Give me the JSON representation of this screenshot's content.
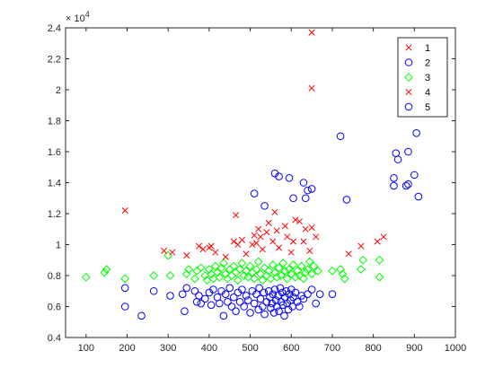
{
  "chart_data": {
    "type": "scatter",
    "title": "",
    "xlabel": "",
    "ylabel": "",
    "xlim": [
      50,
      1000
    ],
    "ylim": [
      4000,
      24000
    ],
    "x_ticks": [
      100,
      200,
      300,
      400,
      500,
      600,
      700,
      800,
      900,
      1000
    ],
    "y_ticks": [
      4000,
      6000,
      8000,
      10000,
      12000,
      14000,
      16000,
      18000,
      20000,
      22000,
      24000
    ],
    "y_tick_labels": [
      "0.4",
      "0.6",
      "0.8",
      "1",
      "1.2",
      "1.4",
      "1.6",
      "1.8",
      "2",
      "2.2",
      "2.4"
    ],
    "y_exponent_label": "× 10",
    "y_exponent_power": "4",
    "grid": false,
    "legend_position": "top-right",
    "series": [
      {
        "name": "1",
        "marker": "x",
        "color": "#ff0000",
        "points": [
          [
            195,
            12200
          ],
          [
            290,
            9600
          ],
          [
            310,
            9500
          ],
          [
            345,
            9300
          ],
          [
            375,
            9900
          ],
          [
            385,
            9700
          ],
          [
            400,
            9800
          ],
          [
            405,
            9900
          ],
          [
            415,
            9500
          ],
          [
            440,
            9200
          ],
          [
            460,
            10200
          ],
          [
            465,
            11900
          ],
          [
            470,
            10000
          ],
          [
            480,
            10300
          ],
          [
            490,
            9400
          ],
          [
            505,
            10000
          ],
          [
            510,
            10600
          ],
          [
            515,
            10100
          ],
          [
            520,
            11000
          ],
          [
            525,
            10500
          ],
          [
            530,
            9700
          ],
          [
            540,
            10800
          ],
          [
            545,
            11400
          ],
          [
            555,
            10200
          ],
          [
            560,
            12100
          ],
          [
            565,
            10900
          ],
          [
            570,
            9800
          ],
          [
            585,
            11200
          ],
          [
            590,
            10500
          ],
          [
            600,
            9500
          ],
          [
            605,
            10200
          ],
          [
            610,
            11600
          ],
          [
            620,
            11500
          ],
          [
            630,
            10200
          ],
          [
            635,
            11000
          ],
          [
            645,
            9600
          ],
          [
            650,
            11100
          ],
          [
            660,
            10500
          ],
          [
            740,
            9400
          ],
          [
            770,
            9900
          ],
          [
            810,
            10200
          ],
          [
            825,
            10500
          ]
        ]
      },
      {
        "name": "2",
        "marker": "o",
        "color": "#0000ff",
        "points": [
          [
            195,
            7200
          ],
          [
            195,
            6000
          ],
          [
            235,
            5400
          ],
          [
            265,
            7000
          ],
          [
            305,
            6700
          ],
          [
            335,
            6800
          ],
          [
            340,
            5700
          ],
          [
            345,
            7200
          ],
          [
            365,
            7000
          ],
          [
            370,
            6300
          ],
          [
            375,
            6700
          ],
          [
            380,
            6200
          ],
          [
            390,
            6500
          ],
          [
            400,
            6900
          ],
          [
            405,
            6100
          ],
          [
            410,
            7100
          ],
          [
            420,
            6600
          ],
          [
            425,
            6200
          ],
          [
            430,
            7000
          ],
          [
            435,
            5400
          ],
          [
            440,
            6800
          ],
          [
            445,
            6300
          ],
          [
            450,
            7200
          ],
          [
            455,
            6000
          ],
          [
            460,
            6600
          ],
          [
            465,
            5700
          ],
          [
            470,
            6900
          ],
          [
            475,
            6300
          ],
          [
            480,
            7100
          ],
          [
            485,
            6000
          ],
          [
            490,
            6700
          ],
          [
            495,
            6400
          ],
          [
            500,
            5600
          ],
          [
            505,
            7000
          ],
          [
            510,
            6200
          ],
          [
            515,
            6800
          ],
          [
            520,
            5800
          ],
          [
            522,
            7200
          ],
          [
            525,
            6500
          ],
          [
            530,
            6000
          ],
          [
            533,
            6900
          ],
          [
            535,
            5500
          ],
          [
            540,
            6300
          ],
          [
            545,
            7000
          ],
          [
            548,
            6600
          ],
          [
            550,
            5900
          ],
          [
            553,
            6200
          ],
          [
            555,
            6800
          ],
          [
            558,
            5600
          ],
          [
            560,
            7100
          ],
          [
            563,
            6400
          ],
          [
            565,
            6000
          ],
          [
            568,
            6700
          ],
          [
            570,
            5700
          ],
          [
            573,
            7200
          ],
          [
            575,
            6300
          ],
          [
            578,
            6900
          ],
          [
            580,
            6100
          ],
          [
            583,
            5400
          ],
          [
            585,
            6600
          ],
          [
            588,
            7000
          ],
          [
            590,
            6200
          ],
          [
            593,
            5800
          ],
          [
            595,
            6800
          ],
          [
            598,
            6400
          ],
          [
            600,
            7100
          ],
          [
            603,
            6000
          ],
          [
            605,
            6600
          ],
          [
            610,
            6900
          ],
          [
            615,
            6300
          ],
          [
            620,
            6000
          ],
          [
            625,
            6700
          ],
          [
            630,
            6500
          ],
          [
            640,
            6800
          ],
          [
            650,
            7100
          ],
          [
            660,
            6200
          ],
          [
            670,
            6800
          ],
          [
            700,
            6800
          ],
          [
            510,
            13300
          ],
          [
            535,
            12500
          ],
          [
            560,
            14600
          ],
          [
            570,
            14400
          ],
          [
            595,
            14300
          ],
          [
            605,
            13000
          ],
          [
            630,
            14000
          ],
          [
            640,
            13500
          ],
          [
            650,
            13600
          ],
          [
            635,
            13000
          ],
          [
            720,
            17000
          ],
          [
            735,
            12900
          ],
          [
            850,
            14300
          ],
          [
            850,
            13800
          ],
          [
            855,
            15900
          ],
          [
            860,
            15500
          ],
          [
            880,
            13800
          ],
          [
            885,
            13900
          ],
          [
            885,
            16000
          ],
          [
            900,
            14500
          ],
          [
            905,
            17200
          ],
          [
            910,
            13100
          ]
        ]
      },
      {
        "name": "3",
        "marker": "diamond",
        "color": "#00ff00",
        "points": [
          [
            100,
            7900
          ],
          [
            145,
            8200
          ],
          [
            150,
            8400
          ],
          [
            195,
            7800
          ],
          [
            265,
            8000
          ],
          [
            300,
            9300
          ],
          [
            305,
            8000
          ],
          [
            345,
            8100
          ],
          [
            350,
            8400
          ],
          [
            365,
            7800
          ],
          [
            370,
            8300
          ],
          [
            380,
            8500
          ],
          [
            390,
            8000
          ],
          [
            395,
            7700
          ],
          [
            400,
            8400
          ],
          [
            405,
            8100
          ],
          [
            410,
            7800
          ],
          [
            415,
            8600
          ],
          [
            420,
            8200
          ],
          [
            425,
            7900
          ],
          [
            430,
            8500
          ],
          [
            435,
            8800
          ],
          [
            440,
            8100
          ],
          [
            445,
            7800
          ],
          [
            450,
            8400
          ],
          [
            455,
            8000
          ],
          [
            460,
            8600
          ],
          [
            465,
            8200
          ],
          [
            470,
            7700
          ],
          [
            475,
            8400
          ],
          [
            480,
            8800
          ],
          [
            485,
            8000
          ],
          [
            490,
            8300
          ],
          [
            495,
            7900
          ],
          [
            500,
            8600
          ],
          [
            505,
            8200
          ],
          [
            510,
            7800
          ],
          [
            515,
            8400
          ],
          [
            520,
            8900
          ],
          [
            525,
            8100
          ],
          [
            530,
            7700
          ],
          [
            535,
            8500
          ],
          [
            540,
            8000
          ],
          [
            545,
            8300
          ],
          [
            550,
            7800
          ],
          [
            555,
            8700
          ],
          [
            560,
            8200
          ],
          [
            565,
            7900
          ],
          [
            570,
            8500
          ],
          [
            575,
            8000
          ],
          [
            580,
            8800
          ],
          [
            585,
            8300
          ],
          [
            590,
            7800
          ],
          [
            595,
            8400
          ],
          [
            600,
            8100
          ],
          [
            605,
            8700
          ],
          [
            610,
            7900
          ],
          [
            615,
            8300
          ],
          [
            620,
            8000
          ],
          [
            625,
            8600
          ],
          [
            630,
            7800
          ],
          [
            635,
            8200
          ],
          [
            640,
            8400
          ],
          [
            645,
            8900
          ],
          [
            650,
            8100
          ],
          [
            655,
            8600
          ],
          [
            665,
            8300
          ],
          [
            700,
            8300
          ],
          [
            720,
            8400
          ],
          [
            725,
            8100
          ],
          [
            730,
            7800
          ],
          [
            770,
            8400
          ],
          [
            775,
            9000
          ],
          [
            815,
            7900
          ],
          [
            815,
            9000
          ]
        ]
      },
      {
        "name": "4",
        "marker": "x",
        "color": "#ff0000",
        "points": [
          [
            650,
            23700
          ],
          [
            650,
            20100
          ]
        ]
      },
      {
        "name": "5",
        "marker": "o",
        "color": "#0000ff",
        "points": []
      }
    ]
  }
}
